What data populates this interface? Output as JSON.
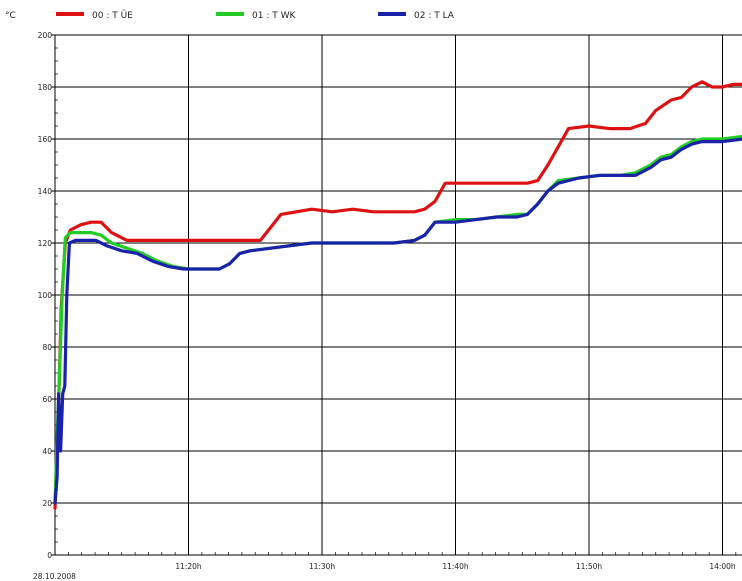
{
  "chart_data": {
    "type": "line",
    "y_unit": "°C",
    "date": "28.10.2008",
    "xlim": [
      "11:10h",
      "14:00h"
    ],
    "ylim": [
      0,
      200
    ],
    "y_ticks": [
      0,
      20,
      40,
      60,
      80,
      100,
      120,
      140,
      160,
      180,
      200
    ],
    "x_ticks": [
      "11:20h",
      "11:30h",
      "11:40h",
      "11:50h",
      "14:00h"
    ],
    "grid": true,
    "legend_position": "top",
    "series": [
      {
        "name": "00 : T ÜE",
        "color": "#dd1111",
        "points": [
          [
            0.0,
            18
          ],
          [
            0.3,
            50
          ],
          [
            0.6,
            95
          ],
          [
            1.0,
            120
          ],
          [
            1.5,
            125
          ],
          [
            2.5,
            127
          ],
          [
            3.5,
            128
          ],
          [
            4.5,
            128
          ],
          [
            5.5,
            124
          ],
          [
            7.0,
            121
          ],
          [
            9.0,
            121
          ],
          [
            11.0,
            121
          ],
          [
            13.0,
            121
          ],
          [
            15.0,
            121
          ],
          [
            17.0,
            121
          ],
          [
            19.0,
            121
          ],
          [
            20.0,
            121
          ],
          [
            21.0,
            126
          ],
          [
            22.0,
            131
          ],
          [
            23.5,
            132
          ],
          [
            25.0,
            133
          ],
          [
            27.0,
            132
          ],
          [
            29.0,
            133
          ],
          [
            31.0,
            132
          ],
          [
            33.0,
            132
          ],
          [
            35.0,
            132
          ],
          [
            36.0,
            133
          ],
          [
            37.0,
            136
          ],
          [
            38.0,
            143
          ],
          [
            40.0,
            143
          ],
          [
            42.0,
            143
          ],
          [
            44.0,
            143
          ],
          [
            46.0,
            143
          ],
          [
            47.0,
            144
          ],
          [
            48.0,
            150
          ],
          [
            49.0,
            157
          ],
          [
            50.0,
            164
          ],
          [
            52.0,
            165
          ],
          [
            54.0,
            164
          ],
          [
            56.0,
            164
          ],
          [
            57.5,
            166
          ],
          [
            58.5,
            171
          ],
          [
            60.0,
            175
          ],
          [
            61.0,
            176
          ],
          [
            62.0,
            180
          ],
          [
            63.0,
            182
          ],
          [
            64.0,
            180
          ],
          [
            65.0,
            180
          ],
          [
            66.0,
            181
          ],
          [
            67.0,
            181
          ]
        ]
      },
      {
        "name": "01 : T WK",
        "color": "#22cc22",
        "points": [
          [
            0.0,
            20
          ],
          [
            0.2,
            45
          ],
          [
            0.4,
            65
          ],
          [
            0.7,
            100
          ],
          [
            1.0,
            122
          ],
          [
            1.5,
            124
          ],
          [
            2.5,
            124
          ],
          [
            3.5,
            124
          ],
          [
            4.5,
            123
          ],
          [
            5.5,
            120
          ],
          [
            7.0,
            118
          ],
          [
            8.5,
            116
          ],
          [
            10.0,
            113
          ],
          [
            11.5,
            111
          ],
          [
            13.0,
            110
          ],
          [
            14.5,
            110
          ],
          [
            16.0,
            110
          ],
          [
            17.0,
            112
          ],
          [
            18.0,
            116
          ],
          [
            19.0,
            117
          ],
          [
            21.0,
            118
          ],
          [
            23.0,
            119
          ],
          [
            25.0,
            120
          ],
          [
            27.0,
            120
          ],
          [
            29.0,
            120
          ],
          [
            31.0,
            120
          ],
          [
            33.0,
            120
          ],
          [
            35.0,
            121
          ],
          [
            36.0,
            123
          ],
          [
            37.0,
            128
          ],
          [
            39.0,
            129
          ],
          [
            41.0,
            129
          ],
          [
            43.0,
            130
          ],
          [
            45.0,
            131
          ],
          [
            46.0,
            131
          ],
          [
            47.0,
            135
          ],
          [
            48.0,
            140
          ],
          [
            49.0,
            144
          ],
          [
            51.0,
            145
          ],
          [
            53.0,
            146
          ],
          [
            55.0,
            146
          ],
          [
            56.5,
            147
          ],
          [
            58.0,
            150
          ],
          [
            59.0,
            153
          ],
          [
            60.0,
            154
          ],
          [
            61.0,
            157
          ],
          [
            62.0,
            159
          ],
          [
            63.0,
            160
          ],
          [
            65.0,
            160
          ],
          [
            67.0,
            161
          ]
        ]
      },
      {
        "name": "02 : T LA",
        "color": "#1a22aa",
        "points": [
          [
            0.0,
            20
          ],
          [
            0.2,
            30
          ],
          [
            0.35,
            62
          ],
          [
            0.55,
            40
          ],
          [
            0.75,
            62
          ],
          [
            0.95,
            65
          ],
          [
            1.15,
            100
          ],
          [
            1.4,
            120
          ],
          [
            2.0,
            121
          ],
          [
            3.0,
            121
          ],
          [
            4.0,
            121
          ],
          [
            5.0,
            119
          ],
          [
            6.5,
            117
          ],
          [
            8.0,
            116
          ],
          [
            9.5,
            113
          ],
          [
            11.0,
            111
          ],
          [
            12.5,
            110
          ],
          [
            14.0,
            110
          ],
          [
            16.0,
            110
          ],
          [
            17.0,
            112
          ],
          [
            18.0,
            116
          ],
          [
            19.0,
            117
          ],
          [
            21.0,
            118
          ],
          [
            23.0,
            119
          ],
          [
            25.0,
            120
          ],
          [
            27.0,
            120
          ],
          [
            29.0,
            120
          ],
          [
            31.0,
            120
          ],
          [
            33.0,
            120
          ],
          [
            35.0,
            121
          ],
          [
            36.0,
            123
          ],
          [
            37.0,
            128
          ],
          [
            39.0,
            128
          ],
          [
            41.0,
            129
          ],
          [
            43.0,
            130
          ],
          [
            45.0,
            130
          ],
          [
            46.0,
            131
          ],
          [
            47.0,
            135
          ],
          [
            48.0,
            140
          ],
          [
            49.0,
            143
          ],
          [
            51.0,
            145
          ],
          [
            53.0,
            146
          ],
          [
            55.0,
            146
          ],
          [
            56.5,
            146
          ],
          [
            58.0,
            149
          ],
          [
            59.0,
            152
          ],
          [
            60.0,
            153
          ],
          [
            61.0,
            156
          ],
          [
            62.0,
            158
          ],
          [
            63.0,
            159
          ],
          [
            65.0,
            159
          ],
          [
            67.0,
            160
          ]
        ]
      }
    ]
  }
}
